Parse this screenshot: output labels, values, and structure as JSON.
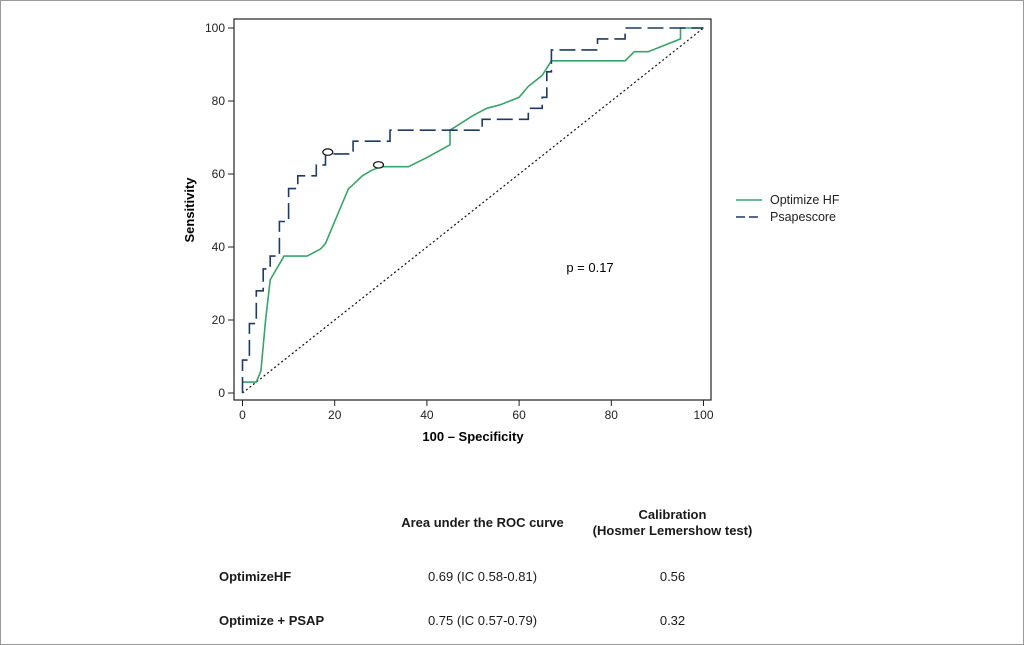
{
  "chart_data": {
    "type": "line",
    "xlabel": "100 – Specificity",
    "ylabel": "Sensitivity",
    "xlim": [
      0,
      100
    ],
    "ylim": [
      0,
      100
    ],
    "xticks": [
      0,
      20,
      40,
      60,
      80,
      100
    ],
    "yticks": [
      0,
      20,
      40,
      60,
      80,
      100
    ],
    "annotation": "p = 0.17",
    "legend_position": "right",
    "reference_line": [
      [
        0,
        0
      ],
      [
        100,
        100
      ]
    ],
    "series": [
      {
        "name": "Optimize HF",
        "color": "#3aa26a",
        "style": "solid",
        "points": [
          [
            0,
            3
          ],
          [
            3,
            3
          ],
          [
            4,
            6
          ],
          [
            5,
            20
          ],
          [
            6,
            31
          ],
          [
            9,
            37.5
          ],
          [
            14,
            37.5
          ],
          [
            17,
            39.5
          ],
          [
            18,
            41
          ],
          [
            19,
            44
          ],
          [
            21,
            50
          ],
          [
            23,
            56
          ],
          [
            23.5,
            56.5
          ],
          [
            26,
            59.5
          ],
          [
            28,
            61
          ],
          [
            30,
            62
          ],
          [
            36,
            62
          ],
          [
            40,
            64.5
          ],
          [
            45,
            68
          ],
          [
            45,
            72
          ],
          [
            50,
            76
          ],
          [
            53,
            78
          ],
          [
            56,
            79
          ],
          [
            60,
            81
          ],
          [
            62,
            84
          ],
          [
            65,
            87
          ],
          [
            67,
            91
          ],
          [
            83,
            91
          ],
          [
            85,
            93.5
          ],
          [
            88,
            93.5
          ],
          [
            95,
            97
          ],
          [
            95,
            100
          ],
          [
            100,
            100
          ]
        ],
        "marker_point": [
          29.5,
          62.5
        ]
      },
      {
        "name": "Psapescore",
        "color": "#1f3a63",
        "style": "dashed",
        "points": [
          [
            0,
            0
          ],
          [
            0,
            9
          ],
          [
            1.5,
            9
          ],
          [
            1.5,
            19
          ],
          [
            3,
            19
          ],
          [
            3,
            28
          ],
          [
            4.5,
            28
          ],
          [
            4.5,
            34
          ],
          [
            6,
            34
          ],
          [
            6,
            37.5
          ],
          [
            8,
            37.5
          ],
          [
            8,
            47
          ],
          [
            10,
            47
          ],
          [
            10,
            56
          ],
          [
            12,
            56
          ],
          [
            12,
            59.5
          ],
          [
            16,
            59.5
          ],
          [
            16,
            62.5
          ],
          [
            18,
            62.5
          ],
          [
            18,
            65.5
          ],
          [
            21,
            65.5
          ],
          [
            24,
            65.5
          ],
          [
            24,
            69
          ],
          [
            32,
            69
          ],
          [
            32,
            72
          ],
          [
            52,
            72
          ],
          [
            52,
            75
          ],
          [
            62,
            75
          ],
          [
            62,
            78
          ],
          [
            65,
            78
          ],
          [
            65,
            81
          ],
          [
            66,
            81
          ],
          [
            66,
            88
          ],
          [
            67,
            88
          ],
          [
            67,
            94
          ],
          [
            77,
            94
          ],
          [
            77,
            97
          ],
          [
            83,
            97
          ],
          [
            83,
            100
          ],
          [
            100,
            100
          ]
        ],
        "marker_point": [
          18.5,
          66
        ]
      }
    ]
  },
  "table": {
    "header_auc": "Area under the ROC curve",
    "header_cal_line1": "Calibration",
    "header_cal_line2": "(Hosmer Lemershow test)",
    "rows": [
      {
        "label": "OptimizeHF",
        "auc": "0.69 (IC 0.58-0.81)",
        "cal": "0.56"
      },
      {
        "label": "Optimize + PSAP",
        "auc": "0.75 (IC 0.57-0.79)",
        "cal": "0.32"
      }
    ]
  }
}
